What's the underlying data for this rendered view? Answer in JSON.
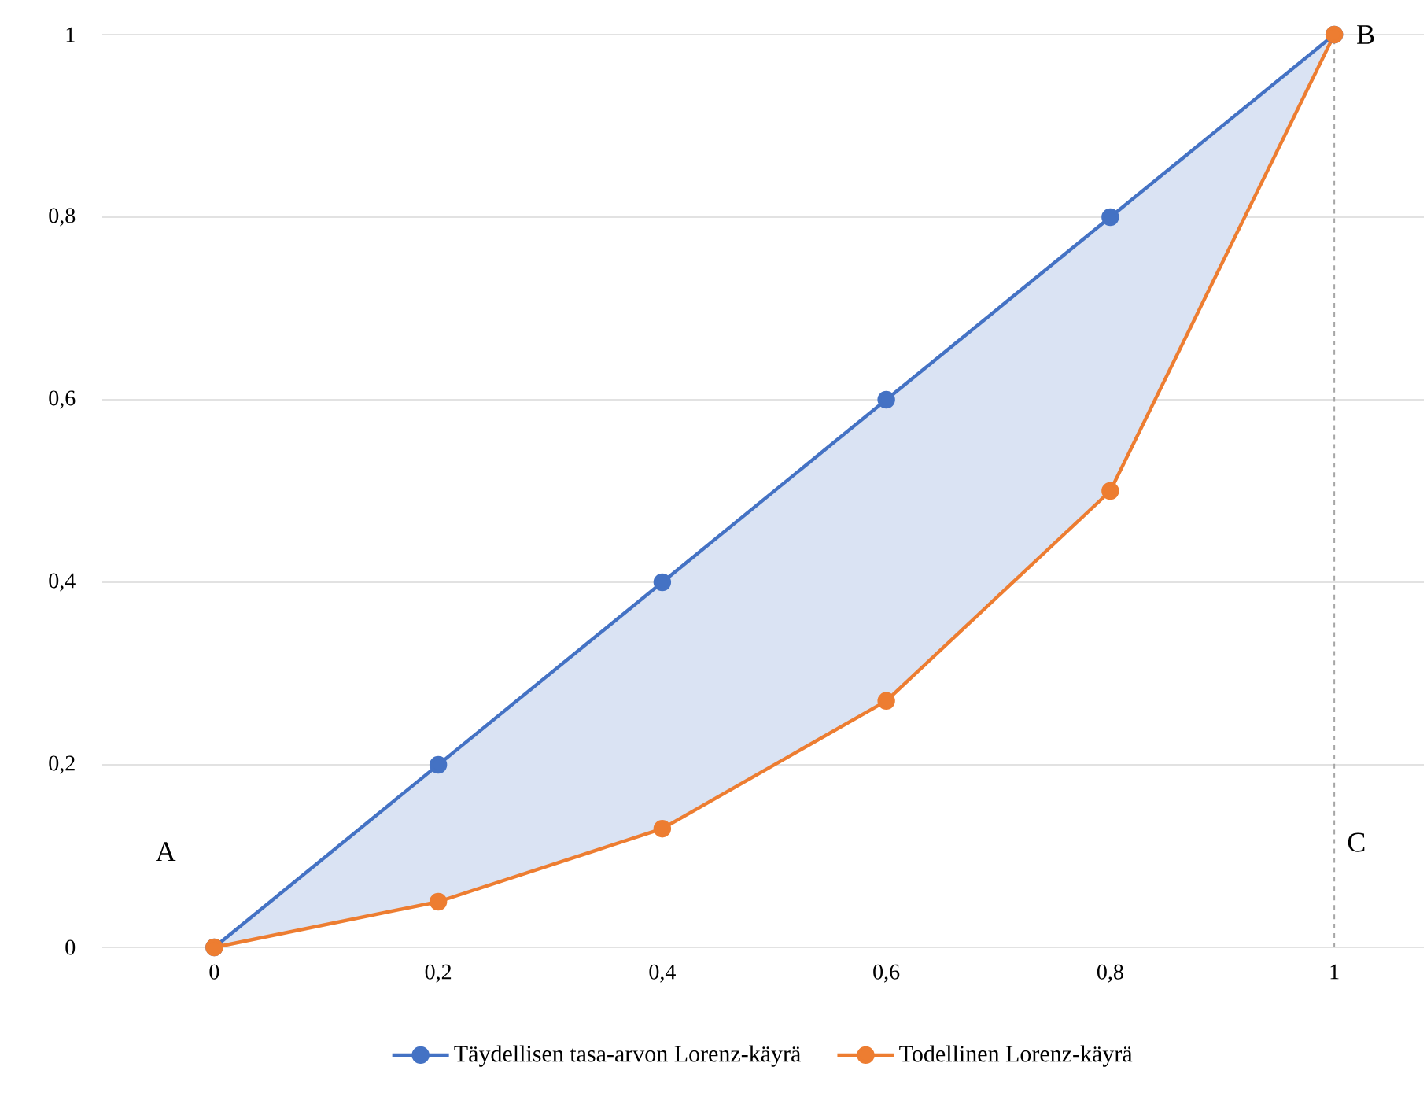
{
  "chart_data": {
    "type": "line",
    "x": [
      0,
      0.2,
      0.4,
      0.6,
      0.8,
      1
    ],
    "series": [
      {
        "name": "Täydellisen tasa-arvon Lorenz-käyrä",
        "color": "#4472c4",
        "values": [
          0,
          0.2,
          0.4,
          0.6,
          0.8,
          1
        ]
      },
      {
        "name": "Todellinen Lorenz-käyrä",
        "color": "#ed7d31",
        "values": [
          0,
          0.05,
          0.13,
          0.27,
          0.5,
          1
        ]
      }
    ],
    "xlim": [
      -0.1,
      1.08
    ],
    "ylim": [
      0,
      1
    ],
    "xticks": [
      0,
      {
        "value": 0.2,
        "label": "0,2"
      },
      {
        "value": 0.4,
        "label": "0,4"
      },
      {
        "value": 0.6,
        "label": "0,6"
      },
      {
        "value": 0.8,
        "label": "0,8"
      },
      1
    ],
    "yticks": [
      0,
      {
        "value": 0.2,
        "label": "0,2"
      },
      {
        "value": 0.4,
        "label": "0,4"
      },
      {
        "value": 0.6,
        "label": "0,6"
      },
      {
        "value": 0.8,
        "label": "0,8"
      },
      1
    ],
    "annotations": [
      "A",
      "B",
      "C"
    ],
    "ref_lines": [
      {
        "axis": "x",
        "value": 1,
        "color": "#a6a6a6",
        "line_style": "dashed"
      }
    ],
    "grid": "y",
    "legend": "bottom",
    "marker": "circle",
    "line_style": "solid"
  }
}
